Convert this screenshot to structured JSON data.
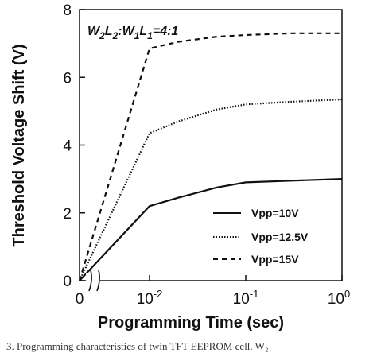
{
  "chart_data": {
    "type": "line",
    "title": "",
    "xlabel": "Programming Time (sec)",
    "ylabel": "Threshold Voltage Shift (V)",
    "x_axis": {
      "scale": "log with axis break",
      "tick_labels": [
        {
          "base": "0",
          "exp": ""
        },
        {
          "base": "10",
          "exp": "-2"
        },
        {
          "base": "10",
          "exp": "-1"
        },
        {
          "base": "10",
          "exp": "0"
        }
      ],
      "tick_values": [
        0,
        0.01,
        0.1,
        1
      ]
    },
    "ylim": [
      0,
      8
    ],
    "y_ticks": [
      0,
      2,
      4,
      6,
      8
    ],
    "grid": false,
    "legend_position": "lower-right",
    "annotation": {
      "parts": [
        {
          "text": "W",
          "sub": false
        },
        {
          "text": "2",
          "sub": true
        },
        {
          "text": "L",
          "sub": false
        },
        {
          "text": "2",
          "sub": true
        },
        {
          "text": ":W",
          "sub": false
        },
        {
          "text": "1",
          "sub": true
        },
        {
          "text": "L",
          "sub": false
        },
        {
          "text": "1",
          "sub": true
        },
        {
          "text": "=4:1",
          "sub": false
        }
      ]
    },
    "series": [
      {
        "name": "Vpp=10V",
        "style": "solid",
        "points": [
          [
            0,
            0
          ],
          [
            0.01,
            2.2
          ],
          [
            0.02,
            2.45
          ],
          [
            0.05,
            2.75
          ],
          [
            0.1,
            2.9
          ],
          [
            0.3,
            2.95
          ],
          [
            1,
            3.0
          ]
        ]
      },
      {
        "name": "Vpp=12.5V",
        "style": "dotted",
        "points": [
          [
            0,
            0
          ],
          [
            0.01,
            4.35
          ],
          [
            0.02,
            4.7
          ],
          [
            0.05,
            5.05
          ],
          [
            0.1,
            5.2
          ],
          [
            0.3,
            5.28
          ],
          [
            1,
            5.35
          ]
        ]
      },
      {
        "name": "Vpp=15V",
        "style": "dashed",
        "points": [
          [
            0,
            0
          ],
          [
            0.01,
            6.85
          ],
          [
            0.02,
            7.05
          ],
          [
            0.05,
            7.2
          ],
          [
            0.1,
            7.25
          ],
          [
            0.3,
            7.3
          ],
          [
            1,
            7.3
          ]
        ]
      }
    ]
  },
  "caption": "3.  Programming characteristics of twin TFT EEPROM cell. W₂"
}
